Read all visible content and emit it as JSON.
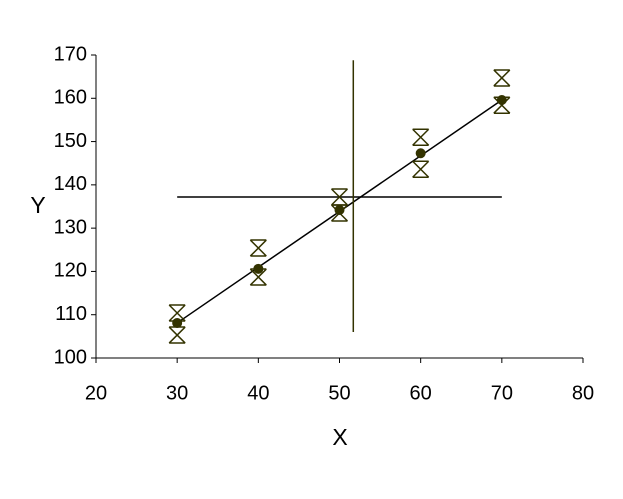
{
  "chart_data": {
    "type": "scatter",
    "x_label": "X",
    "y_label": "Y",
    "xlim": [
      20,
      80
    ],
    "xticks": [
      20,
      30,
      40,
      50,
      60,
      70,
      80
    ],
    "ylim": [
      100,
      170
    ],
    "yticks": [
      100,
      110,
      120,
      130,
      140,
      150,
      160,
      170
    ],
    "series": [
      {
        "color": "#333300",
        "marker": "x",
        "x": [
          30,
          30,
          40,
          40,
          50,
          50,
          60,
          60,
          70,
          70
        ],
        "values": [
          110.4,
          105.3,
          125.4,
          118.7,
          137.2,
          133.5,
          151,
          143.6,
          164.7,
          158.4
        ]
      },
      {
        "color": "#333300",
        "marker": "circle",
        "x": [
          30,
          40,
          50,
          60,
          70
        ],
        "values": [
          108.1,
          120.6,
          134.2,
          147.3,
          159.6
        ]
      }
    ],
    "lines": [
      {
        "color": "#000000",
        "x": [
          30,
          70
        ],
        "values": [
          108.1,
          159.6
        ]
      },
      {
        "color": "#000000",
        "x": [
          30,
          70
        ],
        "values": [
          137.2,
          137.2
        ]
      },
      {
        "color": "#333300",
        "x": [
          51.7,
          51.7
        ],
        "values": [
          106,
          168.8
        ]
      }
    ]
  }
}
